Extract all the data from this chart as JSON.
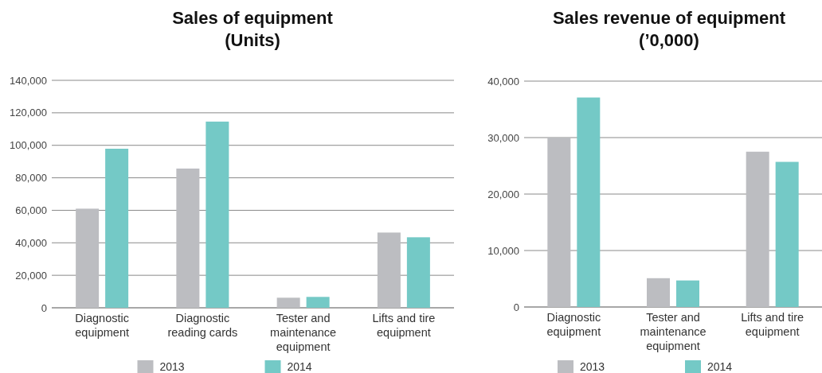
{
  "chart_data": [
    {
      "type": "bar",
      "title": "Sales of equipment\n(Units)",
      "categories": [
        "Diagnostic\nequipment",
        "Diagnostic\nreading cards",
        "Tester and\nmaintenance\nequipment",
        "Lifts and tire\nequipment"
      ],
      "series": [
        {
          "name": "2013",
          "color": "#bcbdc1",
          "values": [
            61000,
            85700,
            6200,
            46300
          ]
        },
        {
          "name": "2014",
          "color": "#74c9c6",
          "values": [
            97900,
            114600,
            6700,
            43400
          ]
        }
      ],
      "ylim": [
        0,
        140000
      ],
      "yticks": [
        {
          "value": 0,
          "label": "0"
        },
        {
          "value": 20000,
          "label": "20,000"
        },
        {
          "value": 40000,
          "label": "40,000"
        },
        {
          "value": 60000,
          "label": "60,000"
        },
        {
          "value": 80000,
          "label": "80,000"
        },
        {
          "value": 100000,
          "label": "100,000"
        },
        {
          "value": 120000,
          "label": "120,000"
        },
        {
          "value": 140000,
          "label": "140,000"
        }
      ],
      "grid": "y",
      "legend": "bottom"
    },
    {
      "type": "bar",
      "title": "Sales revenue of equipment\n(’0,000)",
      "categories": [
        "Diagnostic\nequipment",
        "Tester and\nmaintenance\nequipment",
        "Lifts and tire\nequipment"
      ],
      "series": [
        {
          "name": "2013",
          "color": "#bcbdc1",
          "values": [
            30000,
            5100,
            27500
          ]
        },
        {
          "name": "2014",
          "color": "#74c9c6",
          "values": [
            37100,
            4700,
            25700
          ]
        }
      ],
      "ylim": [
        0,
        40000
      ],
      "yticks": [
        {
          "value": 0,
          "label": "0"
        },
        {
          "value": 10000,
          "label": "10,000"
        },
        {
          "value": 20000,
          "label": "20,000"
        },
        {
          "value": 30000,
          "label": "30,000"
        },
        {
          "value": 40000,
          "label": "40,000"
        }
      ],
      "grid": "y",
      "legend": "bottom"
    }
  ]
}
